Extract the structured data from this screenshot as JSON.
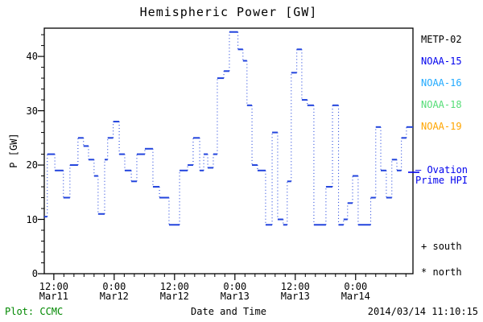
{
  "title": "Hemispheric Power [GW]",
  "footer": {
    "plot_credit": "Plot: CCMC",
    "plot_credit_color": "#008800",
    "timestamp": "2014/03/14 11:10:15"
  },
  "legend": {
    "satellites": [
      {
        "label": "METP-02",
        "color": "#000000"
      },
      {
        "label": "NOAA-15",
        "color": "#0000ee"
      },
      {
        "label": "NOAA-16",
        "color": "#22aaff"
      },
      {
        "label": "NOAA-18",
        "color": "#55dd77"
      },
      {
        "label": "NOAA-19",
        "color": "#ffa500"
      }
    ],
    "ovation": {
      "line1": "— Ovation",
      "line2": "Prime HPI",
      "color": "#0000ee"
    },
    "markers": [
      {
        "symbol": "+",
        "label": "south"
      },
      {
        "symbol": "*",
        "label": "north"
      }
    ]
  },
  "chart_data": {
    "type": "line",
    "step": true,
    "title": "Hemispheric Power [GW]",
    "xlabel": "Date and Time",
    "ylabel": "P [GW]",
    "ylim": [
      0,
      45.2
    ],
    "xlim_hours": [
      10.1,
      83.4
    ],
    "x_hours_reference": "hours since 2014-03-11 00:00 UT",
    "grid": false,
    "x_major_ticks": [
      {
        "hours": 12,
        "time": "12:00",
        "date": "Mar11"
      },
      {
        "hours": 24,
        "time": "0:00",
        "date": "Mar12"
      },
      {
        "hours": 36,
        "time": "12:00",
        "date": "Mar12"
      },
      {
        "hours": 48,
        "time": "0:00",
        "date": "Mar13"
      },
      {
        "hours": 60,
        "time": "12:00",
        "date": "Mar13"
      },
      {
        "hours": 72,
        "time": "0:00",
        "date": "Mar14"
      }
    ],
    "x_minor_step_hours": 2,
    "y_major_ticks": [
      0,
      10,
      20,
      30,
      40
    ],
    "y_minor_step": 2,
    "series": [
      {
        "name": "Ovation Prime HPI",
        "color": "#2244dd",
        "points": [
          [
            10.1,
            10.5
          ],
          [
            10.7,
            22
          ],
          [
            12.2,
            19
          ],
          [
            13.9,
            14
          ],
          [
            15.2,
            20
          ],
          [
            16.8,
            25
          ],
          [
            17.9,
            23.5
          ],
          [
            18.9,
            21
          ],
          [
            20.0,
            18
          ],
          [
            20.8,
            11
          ],
          [
            22.1,
            21
          ],
          [
            22.7,
            25
          ],
          [
            23.8,
            28
          ],
          [
            25.0,
            22
          ],
          [
            26.1,
            19
          ],
          [
            27.4,
            17
          ],
          [
            28.5,
            22
          ],
          [
            30.1,
            23
          ],
          [
            31.7,
            16
          ],
          [
            33.0,
            14
          ],
          [
            34.9,
            9
          ],
          [
            37.0,
            19
          ],
          [
            38.6,
            20
          ],
          [
            39.7,
            25
          ],
          [
            41.0,
            19
          ],
          [
            41.8,
            22
          ],
          [
            42.6,
            19.5
          ],
          [
            43.7,
            22
          ],
          [
            44.5,
            36
          ],
          [
            45.8,
            37.3
          ],
          [
            46.9,
            44.5
          ],
          [
            48.6,
            41.3
          ],
          [
            49.6,
            39.2
          ],
          [
            50.4,
            31
          ],
          [
            51.4,
            20
          ],
          [
            52.5,
            19
          ],
          [
            54.1,
            9
          ],
          [
            55.4,
            26
          ],
          [
            56.5,
            10
          ],
          [
            57.6,
            9
          ],
          [
            58.4,
            17
          ],
          [
            59.2,
            37
          ],
          [
            60.3,
            41.3
          ],
          [
            61.3,
            32
          ],
          [
            62.4,
            31
          ],
          [
            63.7,
            9
          ],
          [
            66.1,
            16
          ],
          [
            67.4,
            31
          ],
          [
            68.6,
            9
          ],
          [
            69.6,
            10
          ],
          [
            70.4,
            13
          ],
          [
            71.4,
            18
          ],
          [
            72.5,
            9
          ],
          [
            75.0,
            14
          ],
          [
            76.0,
            27
          ],
          [
            77.0,
            19
          ],
          [
            78.1,
            14
          ],
          [
            79.2,
            21
          ],
          [
            80.2,
            19
          ],
          [
            81.1,
            25
          ],
          [
            82.1,
            27
          ]
        ]
      }
    ]
  }
}
